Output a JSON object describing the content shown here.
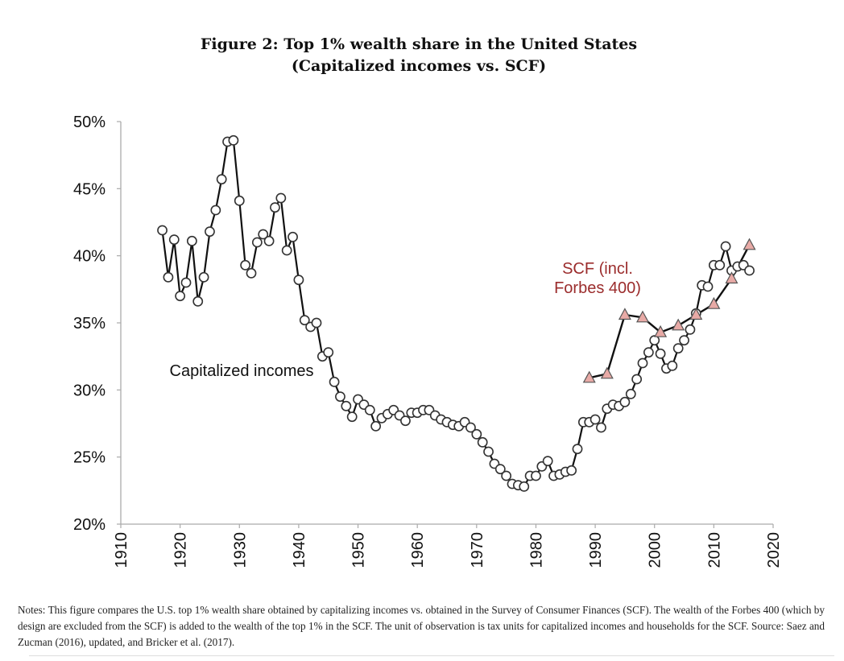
{
  "title_line1": "Figure 2: Top 1% wealth share in the United States",
  "title_line2": "(Capitalized incomes vs. SCF)",
  "notes": "Notes: This figure compares the U.S. top 1% wealth share obtained by capitalizing incomes vs. obtained in the Survey of Consumer Finances (SCF). The wealth of the Forbes 400 (which by design are excluded from the SCF) is added to the wealth of the top 1% in the SCF. The unit of observation is tax units for capitalized incomes and households for the SCF. Source: Saez and Zucman (2016), updated, and Bricker et al. (2017).",
  "colors": {
    "line": "#111111",
    "marker_fill": "#ffffff",
    "scf_marker_fill": "#e8aaa6",
    "scf_label": "#9b2c2c",
    "axis": "#aaaaaa"
  },
  "chart_data": {
    "type": "line",
    "xlabel": "",
    "ylabel": "",
    "xlim": [
      1910,
      2020
    ],
    "ylim": [
      20,
      50
    ],
    "x_ticks": [
      1910,
      1920,
      1930,
      1940,
      1950,
      1960,
      1970,
      1980,
      1990,
      2000,
      2010,
      2020
    ],
    "y_ticks": [
      20,
      25,
      30,
      35,
      40,
      45,
      50
    ],
    "y_tick_labels": [
      "20%",
      "25%",
      "30%",
      "35%",
      "40%",
      "45%",
      "50%"
    ],
    "series": [
      {
        "name": "Capitalized incomes",
        "label": "Capitalized incomes",
        "marker": "circle",
        "x": [
          1917,
          1918,
          1919,
          1920,
          1921,
          1922,
          1923,
          1924,
          1925,
          1926,
          1927,
          1928,
          1929,
          1930,
          1931,
          1932,
          1933,
          1934,
          1935,
          1936,
          1937,
          1938,
          1939,
          1940,
          1941,
          1942,
          1943,
          1944,
          1945,
          1946,
          1947,
          1948,
          1949,
          1950,
          1951,
          1952,
          1953,
          1954,
          1955,
          1956,
          1957,
          1958,
          1959,
          1960,
          1961,
          1962,
          1963,
          1964,
          1965,
          1966,
          1967,
          1968,
          1969,
          1970,
          1971,
          1972,
          1973,
          1974,
          1975,
          1976,
          1977,
          1978,
          1979,
          1980,
          1981,
          1982,
          1983,
          1984,
          1985,
          1986,
          1987,
          1988,
          1989,
          1990,
          1991,
          1992,
          1993,
          1994,
          1995,
          1996,
          1997,
          1998,
          1999,
          2000,
          2001,
          2002,
          2003,
          2004,
          2005,
          2006,
          2007,
          2008,
          2009,
          2010,
          2011,
          2012,
          2013,
          2014,
          2015,
          2016
        ],
        "y": [
          41.9,
          38.4,
          41.2,
          37.0,
          38.0,
          41.1,
          36.6,
          38.4,
          41.8,
          43.4,
          45.7,
          48.5,
          48.6,
          44.1,
          39.3,
          38.7,
          41.0,
          41.6,
          41.1,
          43.6,
          44.3,
          40.4,
          41.4,
          38.2,
          35.2,
          34.7,
          35.0,
          32.5,
          32.8,
          30.6,
          29.5,
          28.8,
          28.0,
          29.3,
          28.9,
          28.5,
          27.3,
          27.9,
          28.2,
          28.5,
          28.1,
          27.7,
          28.3,
          28.3,
          28.5,
          28.5,
          28.1,
          27.8,
          27.6,
          27.4,
          27.3,
          27.6,
          27.2,
          26.7,
          26.1,
          25.4,
          24.5,
          24.1,
          23.6,
          23.0,
          22.9,
          22.8,
          23.6,
          23.6,
          24.3,
          24.7,
          23.6,
          23.7,
          23.9,
          24.0,
          25.6,
          27.6,
          27.6,
          27.8,
          27.2,
          28.6,
          28.9,
          28.8,
          29.1,
          29.7,
          30.8,
          32.0,
          32.8,
          33.7,
          32.7,
          31.6,
          31.8,
          33.1,
          33.7,
          34.5,
          35.7,
          37.8,
          37.7,
          39.3,
          39.3,
          40.7,
          38.9,
          39.2,
          39.3,
          38.9
        ]
      },
      {
        "name": "SCF (incl. Forbes 400)",
        "label_line1": "SCF (incl.",
        "label_line2": "Forbes 400)",
        "marker": "triangle",
        "x": [
          1989,
          1992,
          1995,
          1998,
          2001,
          2004,
          2007,
          2010,
          2013,
          2016
        ],
        "y": [
          30.9,
          31.2,
          35.6,
          35.4,
          34.3,
          34.8,
          35.6,
          36.4,
          38.3,
          40.8
        ]
      }
    ]
  }
}
